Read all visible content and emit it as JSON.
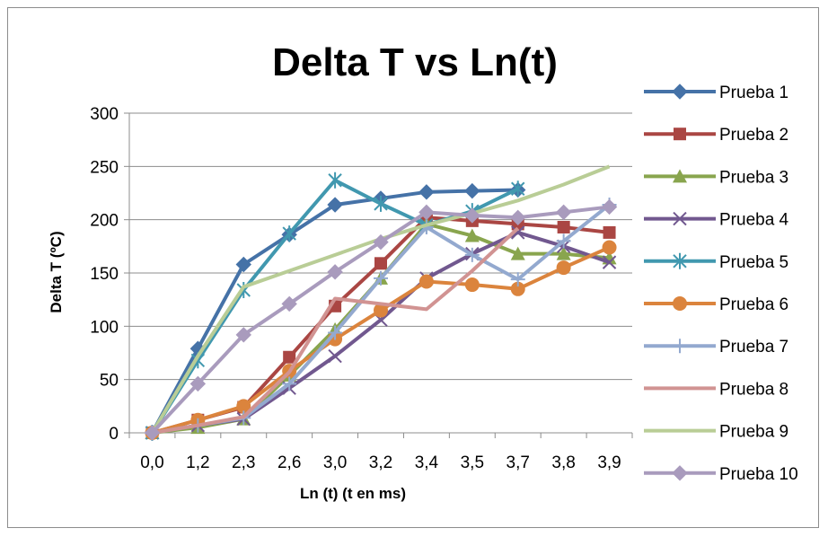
{
  "chart_data": {
    "type": "line",
    "title": "Delta T vs Ln(t)",
    "xlabel": "Ln (t) (t en ms)",
    "ylabel": "Delta T (ºC)",
    "categories": [
      "0,0",
      "1,2",
      "2,3",
      "2,6",
      "3,0",
      "3,2",
      "3,4",
      "3,5",
      "3,7",
      "3,8",
      "3,9"
    ],
    "ylim": [
      0,
      300
    ],
    "yticks": [
      0,
      50,
      100,
      150,
      200,
      250,
      300
    ],
    "grid": true,
    "legend_position": "right",
    "series": [
      {
        "name": "Prueba 1",
        "color": "#4572a7",
        "marker": "diamond",
        "values": [
          0,
          79,
          158,
          186,
          214,
          220,
          226,
          227,
          228,
          null,
          null
        ]
      },
      {
        "name": "Prueba 2",
        "color": "#aa4643",
        "marker": "square",
        "values": [
          0,
          12,
          24,
          71,
          119,
          159,
          202,
          199,
          196,
          193,
          188
        ]
      },
      {
        "name": "Prueba 3",
        "color": "#89a54e",
        "marker": "triangle",
        "values": [
          0,
          5,
          13,
          54,
          97,
          145,
          196,
          185,
          168,
          168,
          164
        ]
      },
      {
        "name": "Prueba 4",
        "color": "#71588f",
        "marker": "x",
        "values": [
          0,
          7,
          13,
          42,
          72,
          106,
          145,
          168,
          188,
          175,
          160
        ]
      },
      {
        "name": "Prueba 5",
        "color": "#4198af",
        "marker": "star",
        "values": [
          0,
          68,
          134,
          187,
          237,
          215,
          195,
          208,
          229,
          null,
          null
        ]
      },
      {
        "name": "Prueba 6",
        "color": "#db843d",
        "marker": "circle",
        "values": [
          0,
          12,
          25,
          58,
          88,
          115,
          142,
          139,
          135,
          155,
          174
        ]
      },
      {
        "name": "Prueba 7",
        "color": "#93a9cf",
        "marker": "plus",
        "values": [
          0,
          7,
          14,
          46,
          94,
          145,
          193,
          167,
          144,
          180,
          214
        ]
      },
      {
        "name": "Prueba 8",
        "color": "#d19392",
        "marker": "none",
        "values": [
          0,
          7,
          15,
          57,
          126,
          121,
          116,
          152,
          192,
          null,
          null
        ]
      },
      {
        "name": "Prueba 9",
        "color": "#b9cd96",
        "marker": "none",
        "values": [
          0,
          72,
          137,
          152,
          167,
          182,
          195,
          206,
          218,
          233,
          250
        ]
      },
      {
        "name": "Prueba 10",
        "color": "#a99bbd",
        "marker": "diamond",
        "values": [
          0,
          46,
          92,
          121,
          151,
          179,
          207,
          204,
          202,
          207,
          212
        ]
      }
    ]
  }
}
